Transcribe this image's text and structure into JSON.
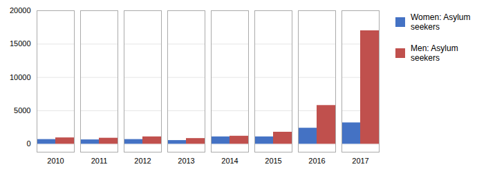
{
  "chart_data": {
    "type": "bar",
    "categories": [
      "2010",
      "2011",
      "2012",
      "2013",
      "2014",
      "2015",
      "2016",
      "2017"
    ],
    "series": [
      {
        "name": "Women: Asylum\nseekers",
        "color": "#4472c4",
        "values": [
          700,
          650,
          700,
          550,
          1100,
          1100,
          2400,
          3200
        ]
      },
      {
        "name": "Men: Asylum\nseekers",
        "color": "#c0504d",
        "values": [
          950,
          900,
          1100,
          850,
          1200,
          1800,
          5800,
          17000
        ]
      }
    ],
    "ylim": [
      -1200,
      20000
    ],
    "yticks": [
      0,
      5000,
      10000,
      15000,
      20000
    ],
    "grid": true,
    "legend": "right"
  }
}
